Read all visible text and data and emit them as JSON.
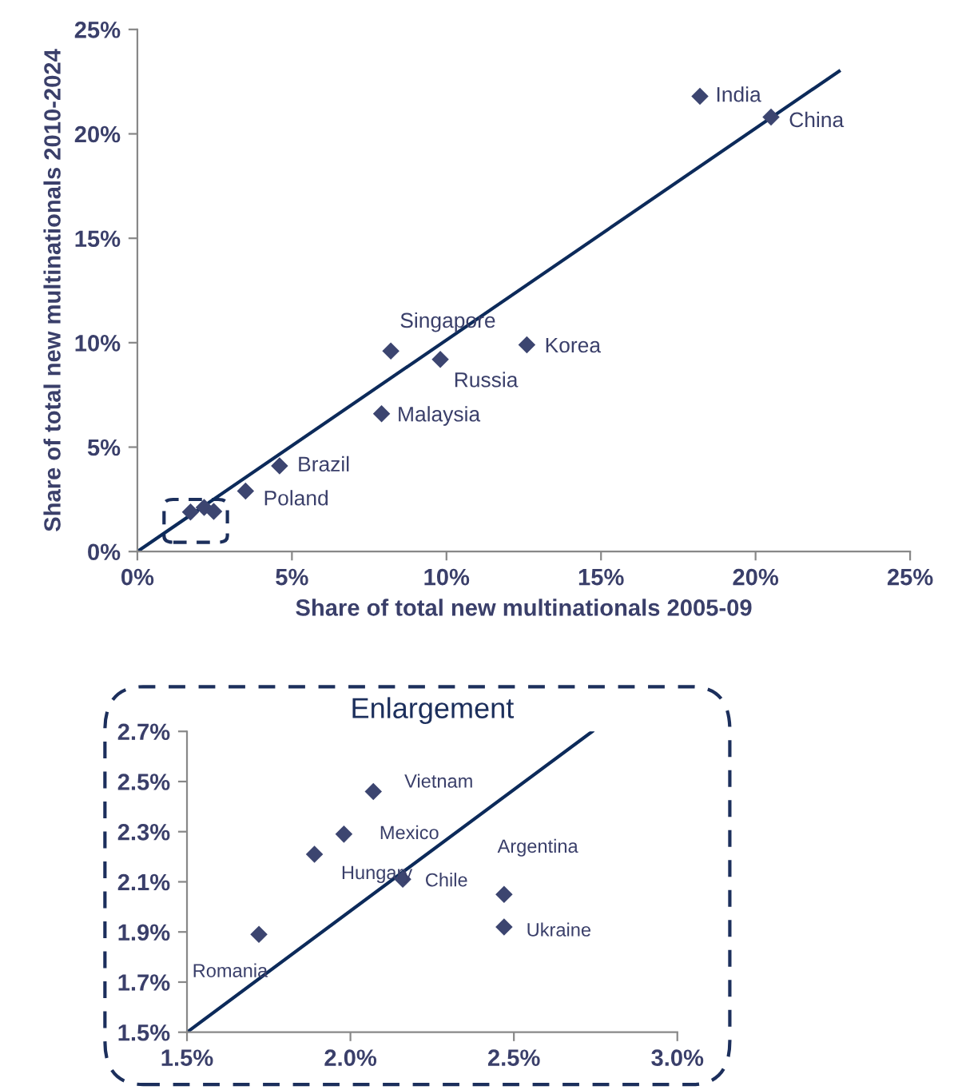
{
  "chart_data": [
    {
      "type": "scatter",
      "xlabel": "Share of total new multinationals 2005-09",
      "ylabel": "Share of total new multinationals 2010-2024",
      "grid": false,
      "legend": false,
      "series": [
        {
          "marker": "diamond",
          "color": "#3c4570",
          "x": [
            18.2,
            20.5,
            8.2,
            9.8,
            12.6,
            7.9,
            4.6,
            3.5
          ],
          "values": [
            21.8,
            20.8,
            9.6,
            9.2,
            9.9,
            6.6,
            4.1,
            2.9
          ]
        },
        {
          "marker": "diamond",
          "color": "#3c4570",
          "x": [
            2.16,
            2.47,
            1.72
          ],
          "values": [
            2.11,
            1.92,
            1.89
          ]
        },
        {
          "type": "line",
          "color": "#0c2a5a",
          "x": [
            0,
            22.7
          ],
          "values": [
            0,
            23.0
          ]
        }
      ],
      "annotations": [
        {
          "text": "India",
          "x": 18.2,
          "y": 21.8
        },
        {
          "text": "China",
          "x": 20.5,
          "y": 20.8
        },
        {
          "text": "Singapore",
          "x": 8.2,
          "y": 9.6
        },
        {
          "text": "Russia",
          "x": 9.8,
          "y": 9.2
        },
        {
          "text": "Korea",
          "x": 12.6,
          "y": 9.9
        },
        {
          "text": "Malaysia",
          "x": 7.9,
          "y": 6.6
        },
        {
          "text": "Brazil",
          "x": 4.6,
          "y": 4.1
        },
        {
          "text": "Poland",
          "x": 3.5,
          "y": 2.9
        }
      ],
      "xlim": [
        0,
        25
      ],
      "ylim": [
        0,
        25
      ],
      "xticks": [
        {
          "value": 0,
          "label": "0%"
        },
        {
          "value": 5,
          "label": "5%"
        },
        {
          "value": 10,
          "label": "10%"
        },
        {
          "value": 15,
          "label": "15%"
        },
        {
          "value": 20,
          "label": "20%"
        },
        {
          "value": 25,
          "label": "25%"
        }
      ],
      "yticks": [
        {
          "value": 0,
          "label": "0%"
        },
        {
          "value": 5,
          "label": "5%"
        },
        {
          "value": 10,
          "label": "10%"
        },
        {
          "value": 15,
          "label": "15%"
        },
        {
          "value": 20,
          "label": "20%"
        },
        {
          "value": 25,
          "label": "25%"
        }
      ]
    },
    {
      "type": "scatter",
      "title": "Enlargement",
      "grid": false,
      "legend": false,
      "series": [
        {
          "marker": "diamond",
          "color": "#3c4570",
          "x": [
            2.07,
            1.98,
            1.89,
            2.16,
            2.47,
            2.47,
            1.72
          ],
          "values": [
            2.46,
            2.29,
            2.21,
            2.11,
            2.05,
            1.92,
            1.89
          ]
        },
        {
          "type": "line",
          "color": "#0c2a5a",
          "x": [
            1.5,
            2.74
          ],
          "values": [
            1.5,
            2.7
          ]
        }
      ],
      "annotations": [
        {
          "text": "Vietnam",
          "x": 2.07,
          "y": 2.46
        },
        {
          "text": "Mexico",
          "x": 1.98,
          "y": 2.29
        },
        {
          "text": "Hungary",
          "x": 1.89,
          "y": 2.21
        },
        {
          "text": "Chile",
          "x": 2.16,
          "y": 2.11
        },
        {
          "text": "Argentina",
          "x": 2.47,
          "y": 2.05
        },
        {
          "text": "Ukraine",
          "x": 2.47,
          "y": 1.92
        },
        {
          "text": "Romania",
          "x": 1.72,
          "y": 1.89
        }
      ],
      "xlim": [
        1.5,
        3.0
      ],
      "ylim": [
        1.5,
        2.7
      ],
      "xticks": [
        {
          "value": 1.5,
          "label": "1.5%"
        },
        {
          "value": 2.0,
          "label": "2.0%"
        },
        {
          "value": 2.5,
          "label": "2.5%"
        },
        {
          "value": 3.0,
          "label": "3.0%"
        }
      ],
      "yticks": [
        {
          "value": 1.5,
          "label": "1.5%"
        },
        {
          "value": 1.7,
          "label": "1.7%"
        },
        {
          "value": 1.9,
          "label": "1.9%"
        },
        {
          "value": 2.1,
          "label": "2.1%"
        },
        {
          "value": 2.3,
          "label": "2.3%"
        },
        {
          "value": 2.5,
          "label": "2.5%"
        },
        {
          "value": 2.7,
          "label": "2.7%"
        }
      ]
    }
  ]
}
